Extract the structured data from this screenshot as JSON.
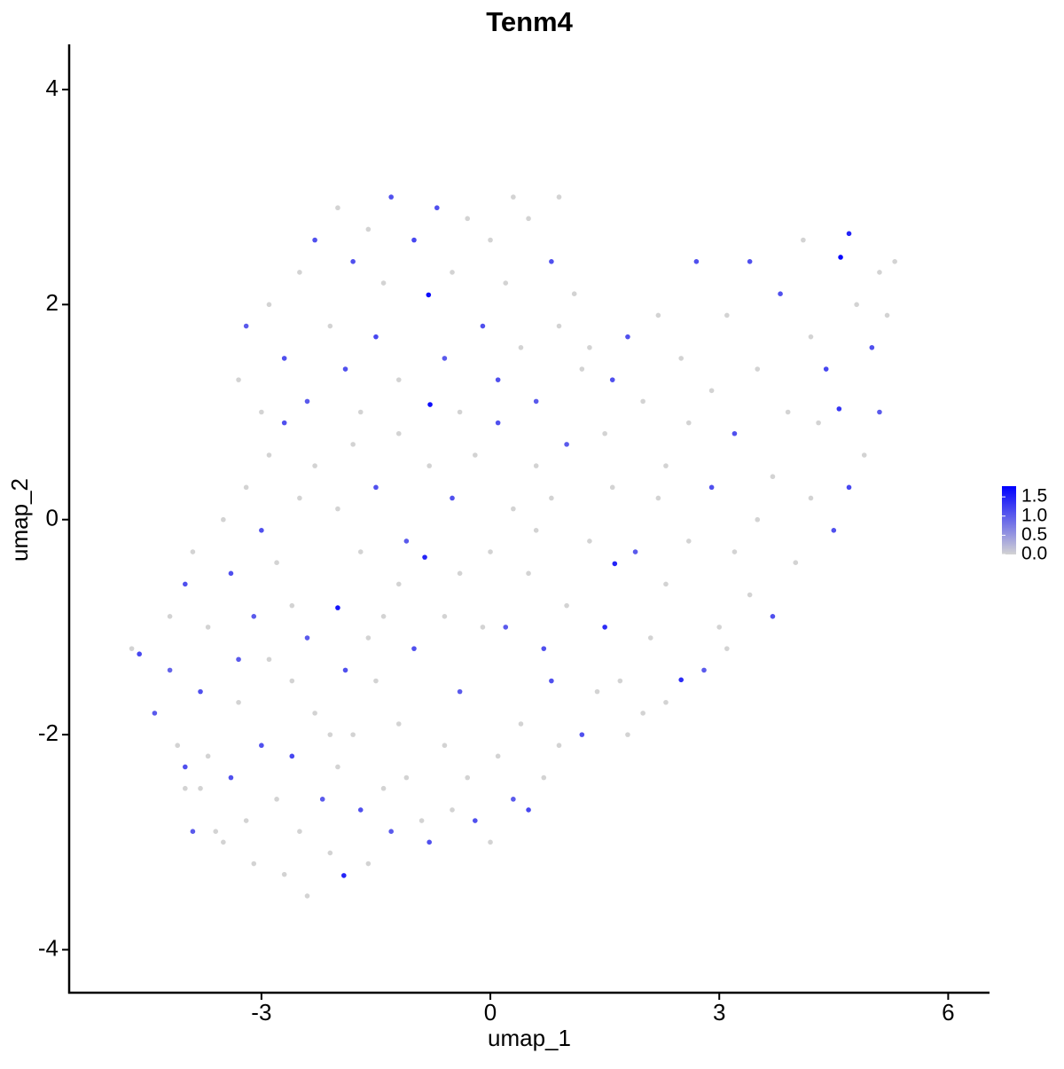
{
  "chart_data": {
    "type": "scatter",
    "title": "Tenm4",
    "x_label": "umap_1",
    "y_label": "umap_2",
    "xlim": [
      -5.52,
      6.53
    ],
    "ylim": [
      -4.4,
      4.42
    ],
    "xticks": [
      -3,
      0,
      3,
      6
    ],
    "yticks": [
      -4,
      -2,
      0,
      2,
      4
    ],
    "colors": [
      "#d3d3d3",
      "#0000ff"
    ],
    "colorbar_lim": [
      0,
      1.78
    ],
    "colorbar_ticks": [
      {
        "value": 0,
        "label": "0.0"
      },
      {
        "value": 0.5,
        "label": "0.5"
      },
      {
        "value": 1,
        "label": "1.0"
      },
      1.5
    ],
    "legend": "right",
    "x": [
      -4.7,
      -4.6,
      -4.4,
      -4.2,
      -4.1,
      -4.0,
      -3.9,
      -3.8,
      -3.7,
      -3.6,
      -3.5,
      -3.4,
      -3.3,
      -3.2,
      -3.1,
      -3.0,
      -2.9,
      -2.8,
      -2.7,
      -2.6,
      -2.5,
      -2.4,
      -2.3,
      -2.2,
      -2.1,
      -2.0,
      -1.92,
      -1.8,
      -1.7,
      -1.6,
      -1.5,
      -1.4,
      -1.3,
      -1.2,
      -1.1,
      -1.0,
      -0.9,
      -0.8,
      -0.6,
      -0.5,
      -0.4,
      -0.3,
      -0.2,
      0.0,
      0.1,
      0.3,
      0.5,
      0.7,
      0.9,
      0.8,
      -4.2,
      -4.0,
      -3.9,
      -3.7,
      -3.5,
      -3.4,
      -3.2,
      -3.1,
      -3.0,
      -2.9,
      -2.8,
      -2.7,
      -2.6,
      -2.5,
      -2.4,
      -2.3,
      -2.0,
      -2.0,
      -1.9,
      -1.8,
      -1.7,
      -1.5,
      -1.4,
      -1.2,
      -1.1,
      -0.86,
      -0.8,
      -0.6,
      -0.5,
      -0.4,
      -0.2,
      0.0,
      0.1,
      0.2,
      0.3,
      0.5,
      0.6,
      0.7,
      0.8,
      1.0,
      -3.3,
      -3.2,
      -3.0,
      -2.9,
      -2.7,
      -2.5,
      -2.4,
      -2.3,
      -2.1,
      -2.0,
      -1.9,
      -1.8,
      -1.7,
      -1.6,
      -1.5,
      -1.4,
      -1.3,
      -1.2,
      -1.0,
      -0.81,
      -0.79,
      -0.7,
      -0.6,
      -0.5,
      -0.4,
      -0.3,
      -0.1,
      0.0,
      0.1,
      0.3,
      0.2,
      0.4,
      0.5,
      0.6,
      0.8,
      0.9,
      1.1,
      1.2,
      1.0,
      0.9,
      1.3,
      1.5,
      1.6,
      1.8,
      2.0,
      2.2,
      2.3,
      2.5,
      2.7,
      2.9,
      3.1,
      3.2,
      3.4,
      3.5,
      3.7,
      3.8,
      3.9,
      4.1,
      4.2,
      4.4,
      4.59,
      4.7,
      4.57,
      4.8,
      5.0,
      5.1,
      5.2,
      5.3,
      4.9,
      5.1,
      4.7,
      4.5,
      4.2,
      4.0,
      3.7,
      3.4,
      3.1,
      2.8,
      2.5,
      2.3,
      1.63,
      1.5,
      1.7,
      1.9,
      2.1,
      2.3,
      2.6,
      2.9,
      3.2,
      3.0,
      1.2,
      1.4,
      1.3,
      1.6,
      1.8,
      2.0,
      2.2,
      2.6,
      3.5,
      4.3,
      0.4,
      -0.1,
      -1.6,
      -2.6,
      -3.3,
      -3.8,
      -4.0,
      -2.1,
      -1.2,
      0.6
    ],
    "y": [
      -1.2,
      -1.25,
      -1.8,
      -1.4,
      -2.1,
      -2.5,
      -2.9,
      -1.6,
      -2.2,
      -2.9,
      -3.0,
      -2.4,
      -1.7,
      -2.8,
      -3.2,
      -2.1,
      -1.3,
      -2.6,
      -3.3,
      -2.2,
      -2.9,
      -3.5,
      -1.8,
      -2.6,
      -3.1,
      -2.3,
      -3.31,
      -2.0,
      -2.7,
      -3.2,
      -1.5,
      -2.5,
      -2.9,
      -1.9,
      -2.4,
      -1.2,
      -2.8,
      -3.0,
      -2.1,
      -2.7,
      -1.6,
      -2.4,
      -2.8,
      -3.0,
      -2.2,
      -2.6,
      -2.7,
      -2.4,
      -2.1,
      -1.5,
      -0.9,
      -0.6,
      -0.3,
      -1.0,
      0.0,
      -0.5,
      0.3,
      -0.9,
      -0.1,
      0.6,
      -0.4,
      0.9,
      -0.8,
      0.2,
      -1.1,
      0.5,
      -0.82,
      0.1,
      -1.4,
      0.7,
      -0.3,
      0.3,
      -0.9,
      0.8,
      -0.2,
      -0.35,
      0.5,
      -0.9,
      0.2,
      -0.5,
      0.6,
      -0.3,
      0.9,
      -1.0,
      0.1,
      -0.5,
      0.5,
      -1.2,
      0.2,
      -0.8,
      1.3,
      1.8,
      1.0,
      2.0,
      1.5,
      2.3,
      1.1,
      2.6,
      1.8,
      2.9,
      1.4,
      2.4,
      1.0,
      2.7,
      1.7,
      2.2,
      3.0,
      1.3,
      2.6,
      2.09,
      1.07,
      2.9,
      1.5,
      2.3,
      1.0,
      2.8,
      1.8,
      2.6,
      1.3,
      3.0,
      2.2,
      1.6,
      2.8,
      1.1,
      2.4,
      1.8,
      2.1,
      1.4,
      0.7,
      3.0,
      1.6,
      0.8,
      1.3,
      1.7,
      1.1,
      1.9,
      0.5,
      1.5,
      2.4,
      1.2,
      1.9,
      0.8,
      2.4,
      1.4,
      0.4,
      2.1,
      1.0,
      2.6,
      1.7,
      1.4,
      2.44,
      2.66,
      1.03,
      2.0,
      1.6,
      2.3,
      1.9,
      2.4,
      0.6,
      1.0,
      0.3,
      -0.1,
      0.2,
      -0.4,
      -0.9,
      -0.7,
      -1.2,
      -1.4,
      -1.49,
      -1.7,
      -0.41,
      -1.0,
      -1.5,
      -0.3,
      -1.1,
      -0.6,
      -0.2,
      0.3,
      -0.3,
      -1.0,
      -2.0,
      -1.6,
      -0.2,
      0.3,
      -2.0,
      -1.8,
      0.2,
      0.9,
      0.0,
      0.9,
      -1.9,
      -1.0,
      -1.1,
      -1.5,
      -1.3,
      -2.5,
      -2.3,
      -2.0,
      -0.6,
      -0.1
    ],
    "values": [
      0,
      0.9,
      0.7,
      0.6,
      0,
      0,
      0.7,
      0.8,
      0,
      0,
      0,
      0.8,
      0,
      0,
      0,
      0.8,
      0,
      0,
      0,
      0.9,
      0,
      0,
      0,
      0.7,
      0,
      0,
      1.3,
      0,
      0.8,
      0,
      0,
      0,
      0.7,
      0,
      0,
      0.8,
      0,
      0.8,
      0,
      0,
      0.7,
      0,
      0.8,
      0,
      0,
      0.7,
      0.9,
      0,
      0,
      0.8,
      0,
      0.8,
      0,
      0,
      0,
      0.8,
      0,
      0.7,
      0.8,
      0,
      0,
      0.8,
      0,
      0,
      0.7,
      0,
      1.5,
      0,
      0.8,
      0,
      0,
      0.8,
      0,
      0,
      0.7,
      1.3,
      0,
      0,
      0.8,
      0,
      0,
      0,
      0.8,
      0.7,
      0,
      0,
      0,
      0.8,
      0,
      0,
      0,
      0.7,
      0,
      0,
      0.8,
      0,
      0.7,
      0.8,
      0,
      0,
      0.8,
      0.8,
      0,
      0,
      0.9,
      0,
      0.8,
      0,
      0.9,
      1.6,
      1.6,
      0.8,
      0.7,
      0,
      0,
      0,
      0.8,
      0,
      0.8,
      0,
      0,
      0,
      0,
      0.7,
      0.8,
      0,
      0,
      0,
      0.7,
      0,
      0,
      0,
      0.8,
      0.8,
      0,
      0,
      0,
      0,
      0.8,
      0,
      0,
      0.8,
      0.8,
      0,
      0,
      0.8,
      0,
      0,
      0,
      0.9,
      1.7,
      1.3,
      1.1,
      0,
      0.8,
      0,
      0,
      0,
      0,
      0.7,
      0.9,
      0.8,
      0,
      0,
      0.8,
      0,
      0,
      0.7,
      1.2,
      0,
      1.3,
      1.2,
      0,
      0.7,
      0,
      0,
      0,
      0.8,
      0,
      0,
      0.8,
      0,
      0,
      0,
      0,
      0,
      0,
      0,
      0,
      0,
      0,
      0,
      0,
      0,
      0.7,
      0,
      0.8,
      0,
      0,
      0
    ]
  }
}
